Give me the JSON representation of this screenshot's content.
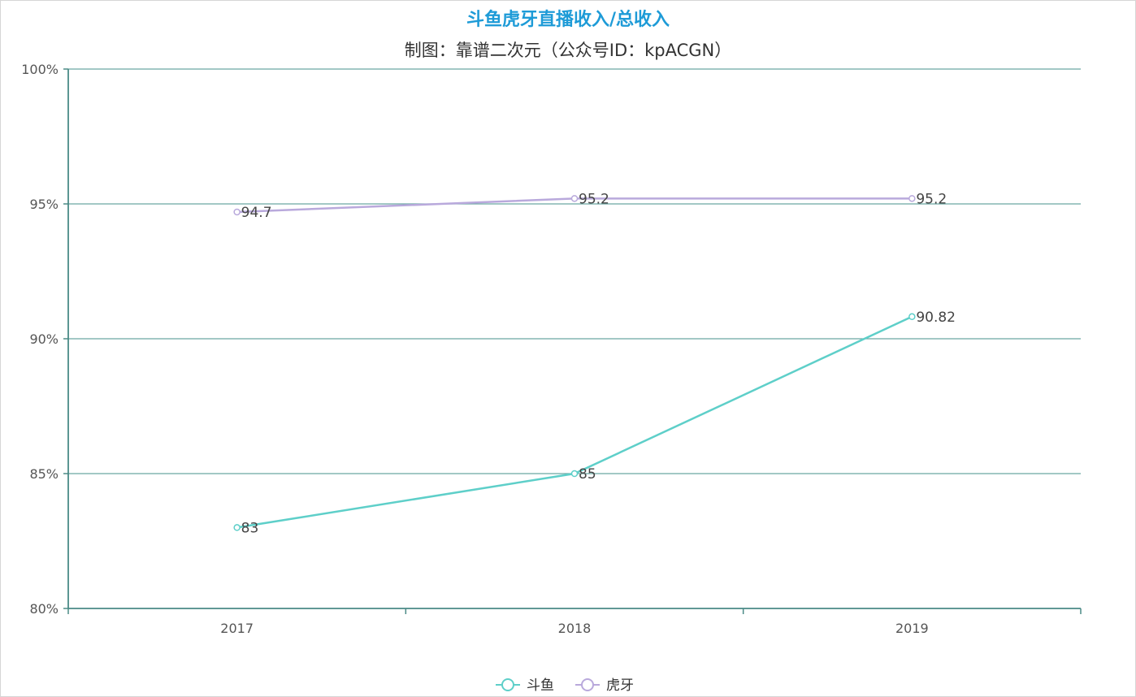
{
  "chart_data": {
    "type": "line",
    "title": "斗鱼虎牙直播收入/总收入",
    "subtitle": "制图：靠谱二次元（公众号ID：kpACGN）",
    "categories": [
      "2017",
      "2018",
      "2019"
    ],
    "series": [
      {
        "name": "斗鱼",
        "values": [
          83,
          85,
          90.82
        ],
        "labels": [
          "83",
          "85",
          "90.82"
        ],
        "color": "#5ecfc9"
      },
      {
        "name": "虎牙",
        "values": [
          94.7,
          95.2,
          95.2
        ],
        "labels": [
          "94.7",
          "95.2",
          "95.2"
        ],
        "color": "#b9a9dc"
      }
    ],
    "ylim": [
      80,
      100
    ],
    "yticks": [
      "80%",
      "85%",
      "90%",
      "95%",
      "100%"
    ],
    "grid": true,
    "legend_position": "bottom-center",
    "axis_color": "#4a8a86",
    "grid_color": "#6aa7a2"
  }
}
